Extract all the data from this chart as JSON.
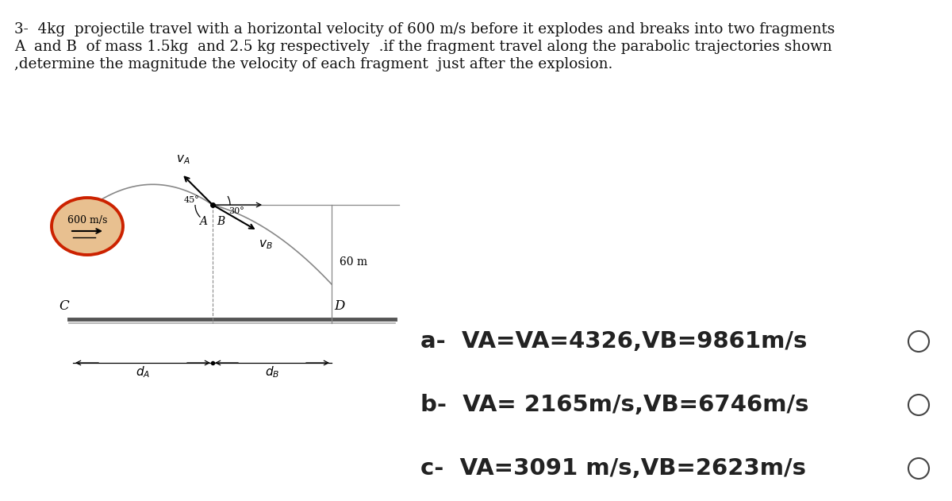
{
  "bg_color": "#ffffff",
  "text_color": "#111111",
  "title_lines": [
    "3-  4kg  projectile travel with a horizontal velocity of 600 m/s before it explodes and breaks into two fragments",
    "A  and B  of mass 1.5kg  and 2.5 kg respectively  .if the fragment travel along the parabolic trajectories shown",
    ",determine the magnitude the velocity of each fragment  just after the explosion."
  ],
  "answer_a": "a-  VA=VA=4326,VB=9861m/s",
  "answer_b": "b-  VA= 2165m/s,VB=6746m/s",
  "answer_c": "c-  VA=3091 m/s,VB=2623m/s",
  "answer_fontsize": 21,
  "title_fontsize": 13.2,
  "ellipse_color_edge": "#cc2200",
  "ellipse_color_face": "#e8c090",
  "ground_color": "#555555",
  "traj_color": "#888888"
}
